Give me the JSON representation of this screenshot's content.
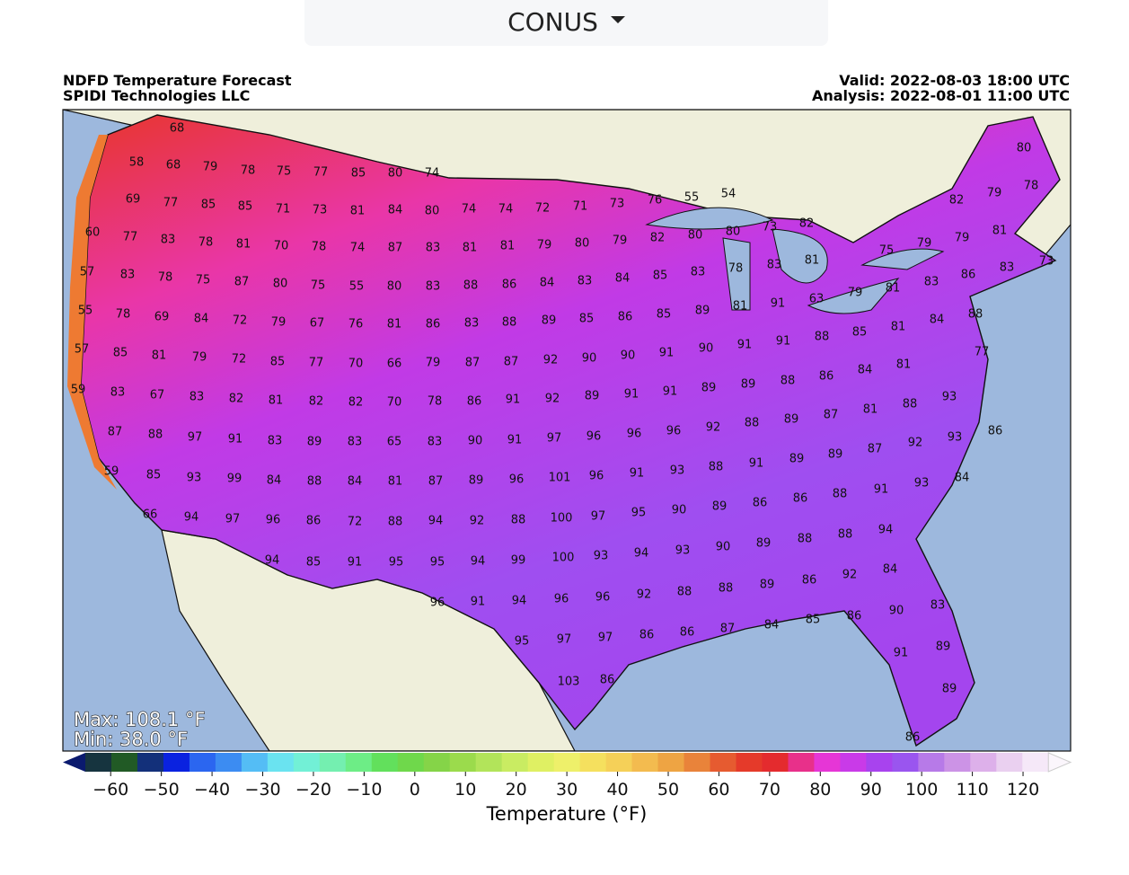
{
  "dropdown": {
    "label": "CONUS"
  },
  "header": {
    "title": "NDFD Temperature Forecast",
    "subtitle": "SPIDI Technologies LLC",
    "valid": "Valid: 2022-08-03 18:00 UTC",
    "analysis": "Analysis: 2022-08-01 11:00 UTC"
  },
  "map": {
    "max_label": "Max: 108.1 °F",
    "min_label": "Min: 38.0 °F",
    "labels": [
      68,
      58,
      68,
      79,
      78,
      75,
      77,
      85,
      80,
      74,
      69,
      77,
      85,
      85,
      71,
      73,
      81,
      84,
      80,
      74,
      74,
      72,
      71,
      73,
      76,
      55,
      54,
      60,
      77,
      83,
      78,
      81,
      70,
      78,
      74,
      87,
      83,
      81,
      81,
      79,
      80,
      79,
      82,
      80,
      80,
      73,
      82,
      82,
      79,
      80,
      78,
      75,
      79,
      79,
      81,
      57,
      83,
      78,
      75,
      87,
      80,
      75,
      55,
      80,
      83,
      88,
      86,
      84,
      83,
      84,
      85,
      83,
      78,
      83,
      81,
      79,
      81,
      83,
      86,
      83,
      73,
      55,
      78,
      69,
      84,
      72,
      79,
      67,
      76,
      81,
      86,
      83,
      88,
      89,
      85,
      86,
      85,
      89,
      81,
      91,
      63,
      88,
      85,
      81,
      84,
      88,
      57,
      85,
      81,
      79,
      72,
      85,
      77,
      70,
      66,
      79,
      87,
      87,
      92,
      90,
      90,
      91,
      90,
      91,
      91,
      86,
      84,
      81,
      77,
      59,
      83,
      67,
      83,
      82,
      81,
      82,
      82,
      70,
      78,
      86,
      91,
      92,
      89,
      91,
      91,
      89,
      89,
      88,
      87,
      81,
      88,
      93,
      87,
      88,
      97,
      91,
      83,
      89,
      83,
      65,
      83,
      90,
      91,
      97,
      96,
      96,
      96,
      92,
      88,
      89,
      89,
      87,
      92,
      93,
      86,
      59,
      85,
      93,
      99,
      84,
      88,
      84,
      81,
      87,
      89,
      96,
      101,
      96,
      91,
      93,
      88,
      91,
      89,
      88,
      91,
      93,
      84,
      66,
      94,
      97,
      96,
      86,
      72,
      88,
      94,
      92,
      88,
      100,
      97,
      95,
      90,
      89,
      86,
      86,
      88,
      94,
      94,
      85,
      91,
      95,
      95,
      94,
      99,
      100,
      93,
      94,
      93,
      90,
      89,
      88,
      92,
      84,
      96,
      91,
      94,
      96,
      96,
      92,
      88,
      88,
      89,
      86,
      84,
      85,
      86,
      90,
      83,
      95,
      97,
      97,
      86,
      86,
      87,
      91,
      89,
      103,
      86,
      89,
      86
    ]
  },
  "colorbar": {
    "label": "Temperature (°F)",
    "lim": [
      -65,
      125
    ],
    "ticks": [
      {
        "value": -60,
        "label": "−60"
      },
      {
        "value": -50,
        "label": "−50"
      },
      {
        "value": -40,
        "label": "−40"
      },
      {
        "value": -30,
        "label": "−30"
      },
      {
        "value": -20,
        "label": "−20"
      },
      {
        "value": -10,
        "label": "−10"
      },
      0,
      10,
      20,
      30,
      40,
      50,
      60,
      70,
      80,
      90,
      100,
      110,
      120
    ],
    "colors": [
      "#0a1a6e",
      "#16343f",
      "#215a25",
      "#13307a",
      "#0a22e0",
      "#2b66f0",
      "#3c8cf2",
      "#54bdf5",
      "#6ae3f0",
      "#72f0d6",
      "#74efb0",
      "#6ded86",
      "#62e05c",
      "#6fd84b",
      "#85d448",
      "#9bdb4c",
      "#b2e45a",
      "#c9ec62",
      "#dff063",
      "#eef06a",
      "#f5e05e",
      "#f5d058",
      "#f3bb4f",
      "#eea443",
      "#e9833a",
      "#e65b30",
      "#e53a2a",
      "#e42b2e",
      "#e8308a",
      "#e636d6",
      "#c93ae8",
      "#a843ee",
      "#9a55ef",
      "#b77ae8",
      "#cc93e6",
      "#ddb0ea",
      "#ead0f0",
      "#f5e8f8",
      "#fbf6fc"
    ]
  }
}
